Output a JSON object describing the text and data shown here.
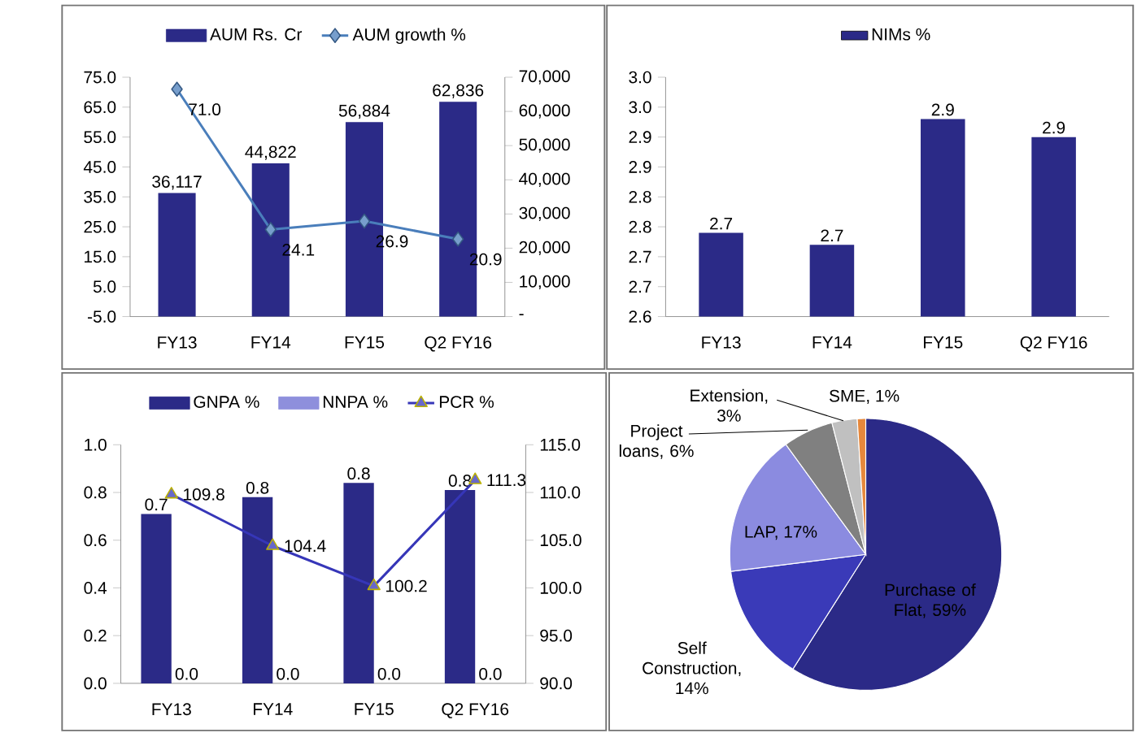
{
  "chart_data": [
    {
      "type": "bar",
      "legend": "top",
      "categories": [
        "FY13",
        "FY14",
        "FY15",
        "Q2 FY16"
      ],
      "ylim": [
        -5,
        75
      ],
      "yticks": [
        {
          "value": -5,
          "label": "-5.0"
        },
        {
          "value": 5,
          "label": "5.0"
        },
        {
          "value": 15,
          "label": "15.0"
        },
        {
          "value": 25,
          "label": "25.0"
        },
        {
          "value": 35,
          "label": "35.0"
        },
        {
          "value": 45,
          "label": "45.0"
        },
        {
          "value": 55,
          "label": "55.0"
        },
        {
          "value": 65,
          "label": "65.0"
        },
        {
          "value": 75,
          "label": "75.0"
        }
      ],
      "y2lim": [
        0,
        70000
      ],
      "y2ticks": [
        {
          "value": 0,
          "label": "-"
        },
        {
          "value": 10000,
          "label": "10,000"
        },
        {
          "value": 20000,
          "label": "20,000"
        },
        {
          "value": 30000,
          "label": "30,000"
        },
        {
          "value": 40000,
          "label": "40,000"
        },
        {
          "value": 50000,
          "label": "50,000"
        },
        {
          "value": 60000,
          "label": "60,000"
        },
        {
          "value": 70000,
          "label": "70,000"
        }
      ],
      "series": [
        {
          "name": "AUM Rs. Cr",
          "type": "bar",
          "axis": "y2",
          "color": "#2b2a87",
          "values": [
            36117,
            44822,
            56884,
            62836
          ],
          "value_labels": [
            "36,117",
            "44,822",
            "56,884",
            "62,836"
          ]
        },
        {
          "name": "AUM growth %",
          "type": "line",
          "marker": "diamond",
          "color": "#4a7ebb",
          "values": [
            71.0,
            24.1,
            26.9,
            20.9
          ],
          "value_labels": [
            "71.0",
            "24.1",
            "26.9",
            "20.9"
          ]
        }
      ]
    },
    {
      "type": "bar",
      "legend": "top",
      "categories": [
        "FY13",
        "FY14",
        "FY15",
        "Q2 FY16"
      ],
      "ylim": [
        2.6,
        3.0
      ],
      "yticks": [
        {
          "value": 2.6,
          "label": "2.6"
        },
        {
          "value": 2.65,
          "label": "2.7"
        },
        {
          "value": 2.7,
          "label": "2.7"
        },
        {
          "value": 2.75,
          "label": "2.8"
        },
        {
          "value": 2.8,
          "label": "2.8"
        },
        {
          "value": 2.85,
          "label": "2.9"
        },
        {
          "value": 2.9,
          "label": "2.9"
        },
        {
          "value": 2.95,
          "label": "3.0"
        },
        {
          "value": 3.0,
          "label": "3.0"
        }
      ],
      "series": [
        {
          "name": "NIMs %",
          "color": "#2b2a87",
          "values": [
            2.74,
            2.72,
            2.93,
            2.9
          ],
          "value_labels": [
            "2.7",
            "2.7",
            "2.9",
            "2.9"
          ]
        }
      ]
    },
    {
      "type": "bar",
      "legend": "top",
      "categories": [
        "FY13",
        "FY14",
        "FY15",
        "Q2 FY16"
      ],
      "ylim": [
        0,
        1.0
      ],
      "yticks": [
        {
          "value": 0,
          "label": "0.0"
        },
        {
          "value": 0.2,
          "label": "0.2"
        },
        {
          "value": 0.4,
          "label": "0.4"
        },
        {
          "value": 0.6,
          "label": "0.6"
        },
        {
          "value": 0.8,
          "label": "0.8"
        },
        {
          "value": 1.0,
          "label": "1.0"
        }
      ],
      "y2lim": [
        90,
        115
      ],
      "y2ticks": [
        {
          "value": 90,
          "label": "90.0"
        },
        {
          "value": 95,
          "label": "95.0"
        },
        {
          "value": 100,
          "label": "100.0"
        },
        {
          "value": 105,
          "label": "105.0"
        },
        {
          "value": 110,
          "label": "110.0"
        },
        {
          "value": 115,
          "label": "115.0"
        }
      ],
      "series": [
        {
          "name": "GNPA %",
          "type": "bar",
          "color": "#2b2a87",
          "values": [
            0.71,
            0.78,
            0.84,
            0.81
          ],
          "value_labels": [
            "0.7",
            "0.8",
            "0.8",
            "0.8"
          ]
        },
        {
          "name": "NNPA %",
          "type": "bar",
          "color": "#8e8fdc",
          "values": [
            0,
            0,
            0,
            0
          ],
          "value_labels": [
            "0.0",
            "0.0",
            "0.0",
            "0.0"
          ]
        },
        {
          "name": "PCR %",
          "type": "line",
          "axis": "y2",
          "marker": "triangle",
          "color": "#3636b8",
          "values": [
            109.8,
            104.4,
            100.2,
            111.3
          ],
          "value_labels": [
            "109.8",
            "104.4",
            "100.2",
            "111.3"
          ]
        }
      ]
    },
    {
      "type": "pie",
      "categories": [
        "Purchase of Flat, 59%",
        "Self Construction, 14%",
        "LAP, 17%",
        "Project loans, 6%",
        "Extension, 3%",
        "SME, 1%"
      ],
      "values": [
        59,
        14,
        17,
        6,
        3,
        1
      ],
      "colors": [
        "#2b2a87",
        "#3a3ab8",
        "#8b8be0",
        "#808080",
        "#c0c0c0",
        "#e6883c"
      ]
    }
  ]
}
